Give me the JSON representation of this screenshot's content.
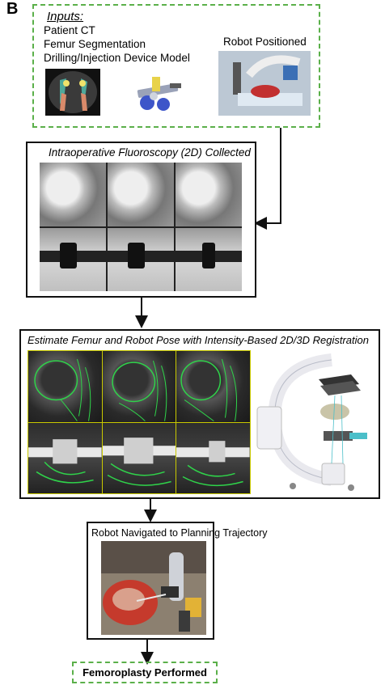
{
  "panel_letter": "B",
  "inputs": {
    "heading": "Inputs:",
    "lines": [
      "Patient CT",
      "Femur Segmentation",
      "Drilling/Injection Device Model"
    ],
    "robot_label": "Robot Positioned"
  },
  "fluoro": {
    "title": "Intraoperative Fluoroscopy (2D) Collected"
  },
  "registration": {
    "title": "Estimate Femur and Robot Pose with Intensity-Based 2D/3D Registration"
  },
  "navigation": {
    "title": "Robot Navigated to Planning Trajectory"
  },
  "result": {
    "title": "Femoroplasty Performed"
  },
  "colors": {
    "dashed_border": "#5bb04a",
    "registration_overlay": "#2fd34a",
    "grid_lines": "#c9c900"
  }
}
